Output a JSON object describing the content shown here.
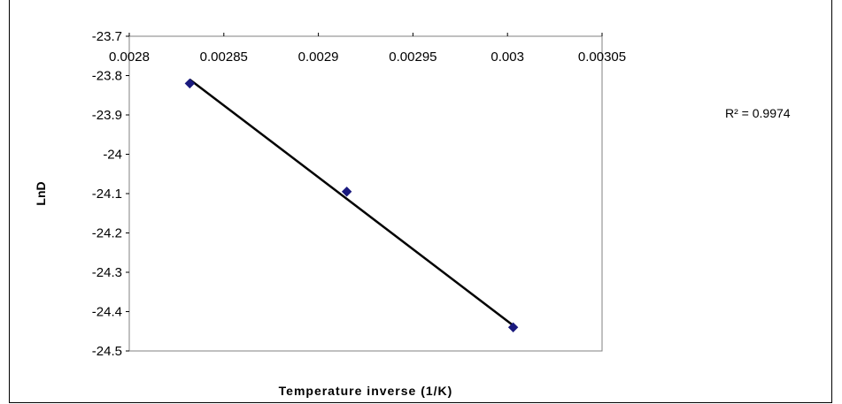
{
  "chart_data": {
    "type": "scatter",
    "title": "",
    "xlabel": "Temperature inverse (1/K)",
    "ylabel": "LnD",
    "xlim": [
      0.0028,
      0.00305
    ],
    "ylim": [
      -24.5,
      -23.7
    ],
    "x_ticks": [
      "0.0028",
      "0.00285",
      "0.0029",
      "0.00295",
      "0.003",
      "0.00305"
    ],
    "y_ticks": [
      "-23.7",
      "-23.8",
      "-23.9",
      "-24",
      "-24.1",
      "-24.2",
      "-24.3",
      "-24.4",
      "-24.5"
    ],
    "grid": false,
    "series": [
      {
        "x": [
          0.002832,
          0.002915,
          0.003003
        ],
        "y": [
          -23.82,
          -24.095,
          -24.44
        ],
        "marker_color": "#1a1a7e"
      }
    ],
    "trendline": {
      "type": "linear",
      "x": [
        0.002832,
        0.003003
      ],
      "y": [
        -23.81,
        -24.435
      ],
      "color": "#000000"
    },
    "annotation": "R² = 0.9974"
  }
}
